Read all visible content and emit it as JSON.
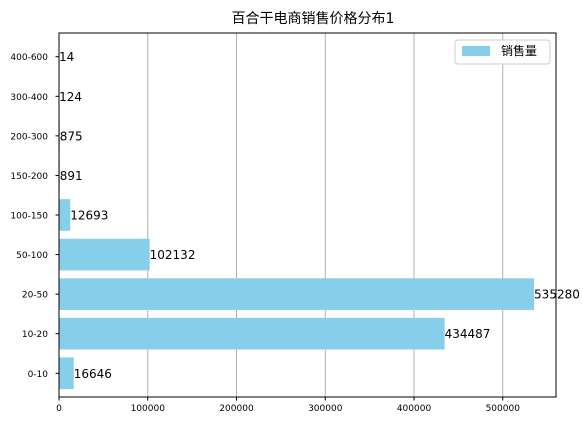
{
  "chart_data": {
    "type": "bar",
    "orientation": "horizontal",
    "title": "百合干电商销售价格分布1",
    "xlabel": "",
    "ylabel": "",
    "categories": [
      "0-10",
      "10-20",
      "20-50",
      "50-100",
      "100-150",
      "150-200",
      "200-300",
      "300-400",
      "400-600"
    ],
    "series": [
      {
        "name": "销售量",
        "color": "#87ceeb",
        "values": [
          16646,
          434487,
          535280,
          102132,
          12693,
          891,
          875,
          124,
          14
        ]
      }
    ],
    "xlim": [
      0,
      560000
    ],
    "xticks": [
      0,
      100000,
      200000,
      300000,
      400000,
      500000
    ],
    "grid": "vertical",
    "legend": "top-right"
  }
}
